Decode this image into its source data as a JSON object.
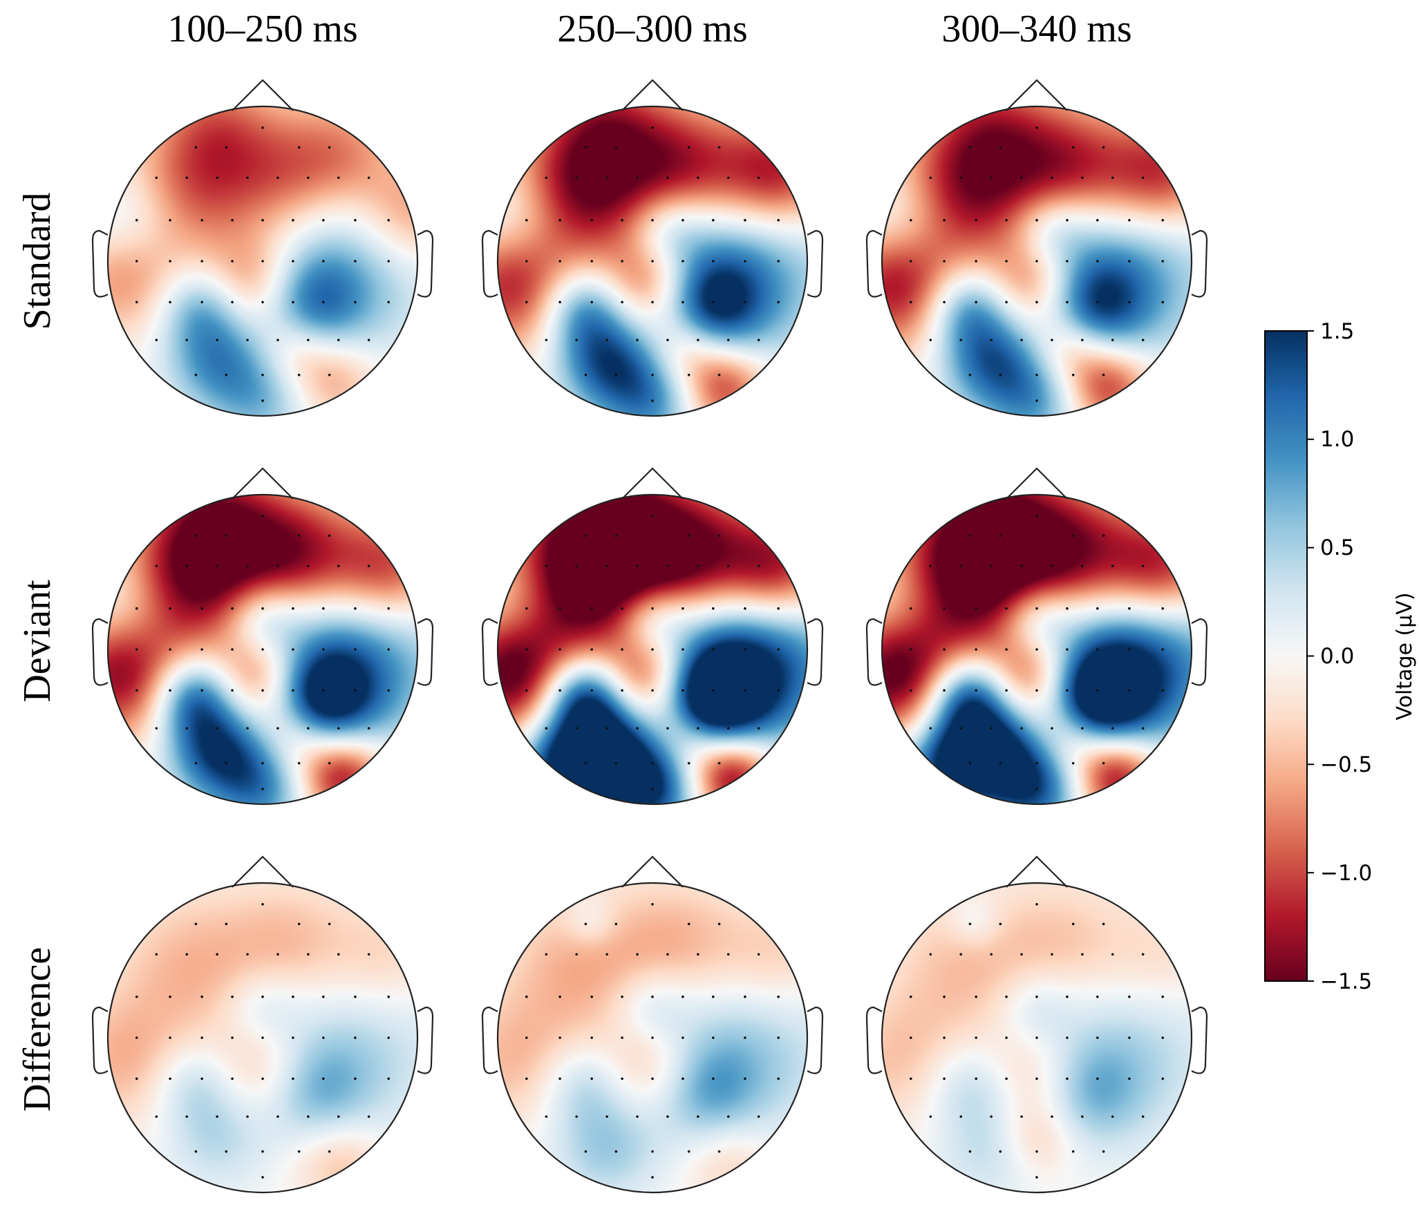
{
  "chart_data": {
    "type": "heatmap",
    "subtype": "eeg-topographic-maps",
    "column_titles": [
      "100–250 ms",
      "250–300 ms",
      "300–340 ms"
    ],
    "row_labels": [
      "Standard",
      "Deviant",
      "Difference"
    ],
    "colorbar": {
      "label": "Voltage (μV)",
      "colormap": "RdBu",
      "range": [
        -1.5,
        1.5
      ],
      "ticks": [
        1.5,
        1.0,
        0.5,
        0.0,
        -0.5,
        -1.0,
        -1.5
      ],
      "tick_labels": [
        "1.5",
        "1.0",
        "0.5",
        "0.0",
        "−0.5",
        "−1.0",
        "−1.5"
      ],
      "colors": {
        "max": "#053061",
        "high": "#2166ac",
        "mid_high": "#4393c3",
        "low_high": "#92c5de",
        "near_zero_pos": "#d1e5f0",
        "zero": "#f7f7f7",
        "near_zero_neg": "#fddbc7",
        "low_neg": "#f4a582",
        "mid_neg": "#d6604d",
        "neg": "#b2182b",
        "min": "#67001f"
      }
    },
    "electrodes_approx": [
      [
        0.0,
        -0.88
      ],
      [
        -0.44,
        -0.75
      ],
      [
        -0.24,
        -0.75
      ],
      [
        0.24,
        -0.75
      ],
      [
        0.44,
        -0.75
      ],
      [
        -0.7,
        -0.55
      ],
      [
        -0.5,
        -0.55
      ],
      [
        -0.3,
        -0.55
      ],
      [
        -0.1,
        -0.55
      ],
      [
        0.1,
        -0.55
      ],
      [
        0.3,
        -0.55
      ],
      [
        0.5,
        -0.55
      ],
      [
        0.7,
        -0.55
      ],
      [
        -0.83,
        -0.27
      ],
      [
        -0.61,
        -0.27
      ],
      [
        -0.4,
        -0.27
      ],
      [
        -0.2,
        -0.27
      ],
      [
        0.0,
        -0.27
      ],
      [
        0.2,
        -0.27
      ],
      [
        0.4,
        -0.27
      ],
      [
        0.61,
        -0.27
      ],
      [
        0.83,
        -0.27
      ],
      [
        -0.83,
        0.0
      ],
      [
        -0.61,
        0.0
      ],
      [
        -0.4,
        0.0
      ],
      [
        -0.2,
        0.0
      ],
      [
        0.0,
        0.0
      ],
      [
        0.2,
        0.0
      ],
      [
        0.4,
        0.0
      ],
      [
        0.61,
        0.0
      ],
      [
        0.83,
        0.0
      ],
      [
        -0.83,
        0.27
      ],
      [
        -0.61,
        0.27
      ],
      [
        -0.4,
        0.27
      ],
      [
        -0.2,
        0.27
      ],
      [
        0.0,
        0.27
      ],
      [
        0.2,
        0.27
      ],
      [
        0.4,
        0.27
      ],
      [
        0.61,
        0.27
      ],
      [
        0.83,
        0.27
      ],
      [
        -0.7,
        0.52
      ],
      [
        -0.5,
        0.52
      ],
      [
        -0.3,
        0.52
      ],
      [
        -0.1,
        0.52
      ],
      [
        0.1,
        0.52
      ],
      [
        0.3,
        0.52
      ],
      [
        0.5,
        0.52
      ],
      [
        0.7,
        0.52
      ],
      [
        -0.44,
        0.75
      ],
      [
        -0.24,
        0.75
      ],
      [
        0.0,
        0.75
      ],
      [
        0.24,
        0.75
      ],
      [
        0.44,
        0.75
      ],
      [
        0.0,
        0.92
      ]
    ],
    "maps": [
      {
        "row": "Standard",
        "col": "100–250 ms",
        "blobs": [
          [
            -0.45,
            -0.45,
            -0.85,
            0.22
          ],
          [
            0.15,
            -0.55,
            -0.75,
            0.2
          ],
          [
            0.55,
            -0.7,
            -0.6,
            0.18
          ],
          [
            -0.3,
            -0.9,
            -0.6,
            0.18
          ],
          [
            -0.85,
            -0.25,
            0.5,
            0.16
          ],
          [
            -0.9,
            0.1,
            -0.7,
            0.18
          ],
          [
            0.5,
            0.05,
            0.7,
            0.28
          ],
          [
            0.3,
            0.3,
            0.9,
            0.16
          ],
          [
            -0.4,
            0.3,
            0.75,
            0.13
          ],
          [
            -0.3,
            0.65,
            0.85,
            0.15
          ],
          [
            0.0,
            0.9,
            0.6,
            0.15
          ],
          [
            -0.05,
            0.15,
            -0.85,
            0.15
          ],
          [
            0.45,
            0.75,
            -0.7,
            0.14
          ],
          [
            0.2,
            0.55,
            -0.55,
            0.12
          ],
          [
            0.95,
            -0.3,
            -0.7,
            0.16
          ]
        ]
      },
      {
        "row": "Standard",
        "col": "250–300 ms",
        "blobs": [
          [
            -0.45,
            -0.45,
            -1.4,
            0.22
          ],
          [
            0.2,
            -0.6,
            -1.2,
            0.2
          ],
          [
            0.8,
            -0.55,
            -1.3,
            0.18
          ],
          [
            -0.3,
            -0.9,
            -0.8,
            0.18
          ],
          [
            -0.85,
            -0.25,
            0.6,
            0.16
          ],
          [
            -0.9,
            0.15,
            -1.2,
            0.2
          ],
          [
            0.55,
            0.05,
            1.0,
            0.28
          ],
          [
            0.35,
            0.3,
            1.2,
            0.16
          ],
          [
            -0.45,
            0.3,
            1.0,
            0.13
          ],
          [
            -0.3,
            0.65,
            1.2,
            0.15
          ],
          [
            0.0,
            0.9,
            0.9,
            0.15
          ],
          [
            0.0,
            0.15,
            -1.1,
            0.15
          ],
          [
            0.45,
            0.8,
            -1.2,
            0.14
          ],
          [
            0.2,
            0.55,
            -0.7,
            0.12
          ],
          [
            0.1,
            -0.2,
            0.6,
            0.12
          ]
        ]
      },
      {
        "row": "Standard",
        "col": "300–340 ms",
        "blobs": [
          [
            -0.45,
            -0.45,
            -1.3,
            0.22
          ],
          [
            0.2,
            -0.6,
            -1.2,
            0.2
          ],
          [
            0.8,
            -0.55,
            -1.2,
            0.18
          ],
          [
            -0.3,
            -0.9,
            -0.7,
            0.18
          ],
          [
            -0.85,
            -0.25,
            0.6,
            0.16
          ],
          [
            -0.9,
            0.15,
            -1.3,
            0.2
          ],
          [
            0.55,
            0.05,
            0.9,
            0.28
          ],
          [
            0.35,
            0.3,
            1.1,
            0.16
          ],
          [
            -0.45,
            0.3,
            1.0,
            0.13
          ],
          [
            -0.3,
            0.65,
            1.1,
            0.15
          ],
          [
            0.0,
            0.9,
            0.8,
            0.15
          ],
          [
            0.0,
            0.15,
            -1.0,
            0.15
          ],
          [
            0.45,
            0.8,
            -1.2,
            0.14
          ],
          [
            0.2,
            0.55,
            -0.7,
            0.12
          ],
          [
            0.1,
            -0.2,
            0.6,
            0.12
          ]
        ]
      },
      {
        "row": "Deviant",
        "col": "100–250 ms",
        "blobs": [
          [
            -0.45,
            -0.45,
            -1.5,
            0.22
          ],
          [
            0.2,
            -0.6,
            -1.4,
            0.2
          ],
          [
            0.8,
            -0.5,
            -1.2,
            0.18
          ],
          [
            -0.3,
            -0.9,
            -0.9,
            0.18
          ],
          [
            -0.85,
            -0.25,
            0.6,
            0.16
          ],
          [
            -0.9,
            0.15,
            -1.4,
            0.2
          ],
          [
            0.55,
            0.05,
            1.2,
            0.28
          ],
          [
            0.35,
            0.35,
            1.5,
            0.16
          ],
          [
            -0.45,
            0.3,
            1.3,
            0.13
          ],
          [
            -0.3,
            0.65,
            1.3,
            0.15
          ],
          [
            0.0,
            0.9,
            0.9,
            0.15
          ],
          [
            0.0,
            0.2,
            -1.2,
            0.15
          ],
          [
            0.5,
            0.8,
            -1.5,
            0.14
          ],
          [
            0.2,
            0.55,
            -0.8,
            0.12
          ],
          [
            0.0,
            -0.2,
            0.7,
            0.12
          ]
        ]
      },
      {
        "row": "Deviant",
        "col": "250–300 ms",
        "blobs": [
          [
            -0.45,
            -0.45,
            -1.8,
            0.24
          ],
          [
            0.2,
            -0.6,
            -1.7,
            0.22
          ],
          [
            0.8,
            -0.5,
            -1.5,
            0.18
          ],
          [
            -0.3,
            -0.9,
            -1.0,
            0.18
          ],
          [
            -0.85,
            -0.25,
            0.6,
            0.16
          ],
          [
            -0.9,
            0.15,
            -1.6,
            0.2
          ],
          [
            0.6,
            0.05,
            1.7,
            0.28
          ],
          [
            0.35,
            0.35,
            1.9,
            0.16
          ],
          [
            -0.45,
            0.3,
            1.6,
            0.13
          ],
          [
            -0.3,
            0.65,
            1.6,
            0.15
          ],
          [
            0.0,
            0.9,
            1.4,
            0.15
          ],
          [
            0.0,
            0.2,
            -1.4,
            0.15
          ],
          [
            0.5,
            0.8,
            -1.7,
            0.14
          ],
          [
            0.2,
            0.55,
            -0.9,
            0.12
          ],
          [
            0.0,
            -0.2,
            0.8,
            0.12
          ],
          [
            -0.6,
            0.75,
            1.3,
            0.14
          ]
        ]
      },
      {
        "row": "Deviant",
        "col": "300–340 ms",
        "blobs": [
          [
            -0.45,
            -0.45,
            -1.7,
            0.24
          ],
          [
            0.2,
            -0.6,
            -1.5,
            0.22
          ],
          [
            0.8,
            -0.5,
            -1.4,
            0.18
          ],
          [
            -0.3,
            -0.9,
            -0.9,
            0.18
          ],
          [
            -0.85,
            -0.25,
            0.6,
            0.16
          ],
          [
            -0.9,
            0.15,
            -1.6,
            0.2
          ],
          [
            0.6,
            0.05,
            1.6,
            0.28
          ],
          [
            0.35,
            0.35,
            1.7,
            0.16
          ],
          [
            -0.45,
            0.3,
            1.5,
            0.13
          ],
          [
            -0.3,
            0.65,
            1.5,
            0.15
          ],
          [
            0.0,
            0.9,
            1.2,
            0.15
          ],
          [
            0.0,
            0.2,
            -1.3,
            0.15
          ],
          [
            0.5,
            0.8,
            -1.6,
            0.14
          ],
          [
            0.2,
            0.55,
            -0.9,
            0.12
          ],
          [
            0.0,
            -0.2,
            0.8,
            0.12
          ],
          [
            -0.6,
            0.75,
            1.2,
            0.14
          ]
        ]
      },
      {
        "row": "Difference",
        "col": "100–250 ms",
        "blobs": [
          [
            -0.45,
            -0.45,
            -0.5,
            0.24
          ],
          [
            0.2,
            -0.6,
            -0.45,
            0.2
          ],
          [
            0.8,
            -0.5,
            -0.4,
            0.18
          ],
          [
            -0.9,
            0.15,
            -0.5,
            0.2
          ],
          [
            0.6,
            0.05,
            0.45,
            0.28
          ],
          [
            0.35,
            0.35,
            0.55,
            0.16
          ],
          [
            -0.45,
            0.3,
            0.45,
            0.13
          ],
          [
            -0.3,
            0.65,
            0.4,
            0.15
          ],
          [
            0.0,
            0.2,
            -0.45,
            0.15
          ],
          [
            0.5,
            0.8,
            -0.5,
            0.14
          ],
          [
            0.0,
            -0.2,
            0.35,
            0.12
          ]
        ]
      },
      {
        "row": "Difference",
        "col": "250–300 ms",
        "blobs": [
          [
            -0.45,
            -0.45,
            -0.55,
            0.24
          ],
          [
            0.2,
            -0.6,
            -0.5,
            0.2
          ],
          [
            0.8,
            -0.5,
            -0.45,
            0.18
          ],
          [
            -0.9,
            0.15,
            -0.45,
            0.2
          ],
          [
            0.6,
            0.05,
            0.55,
            0.28
          ],
          [
            0.35,
            0.35,
            0.6,
            0.16
          ],
          [
            -0.45,
            0.3,
            0.45,
            0.13
          ],
          [
            -0.3,
            0.7,
            0.55,
            0.16
          ],
          [
            0.0,
            0.2,
            -0.5,
            0.15
          ],
          [
            0.5,
            0.8,
            -0.4,
            0.14
          ],
          [
            0.0,
            -0.2,
            0.4,
            0.12
          ],
          [
            -0.4,
            -0.75,
            0.3,
            0.08
          ]
        ]
      },
      {
        "row": "Difference",
        "col": "300–340 ms",
        "blobs": [
          [
            -0.45,
            -0.45,
            -0.45,
            0.24
          ],
          [
            0.2,
            -0.6,
            -0.4,
            0.2
          ],
          [
            0.8,
            -0.5,
            -0.35,
            0.18
          ],
          [
            -0.9,
            0.15,
            -0.4,
            0.2
          ],
          [
            0.6,
            0.05,
            0.45,
            0.28
          ],
          [
            0.35,
            0.35,
            0.55,
            0.16
          ],
          [
            -0.45,
            0.3,
            0.4,
            0.13
          ],
          [
            -0.3,
            0.7,
            0.4,
            0.16
          ],
          [
            0.0,
            0.25,
            -0.4,
            0.15
          ],
          [
            0.0,
            0.65,
            -0.45,
            0.12
          ],
          [
            0.0,
            -0.2,
            0.35,
            0.12
          ],
          [
            -0.4,
            -0.75,
            0.3,
            0.08
          ]
        ]
      }
    ]
  }
}
